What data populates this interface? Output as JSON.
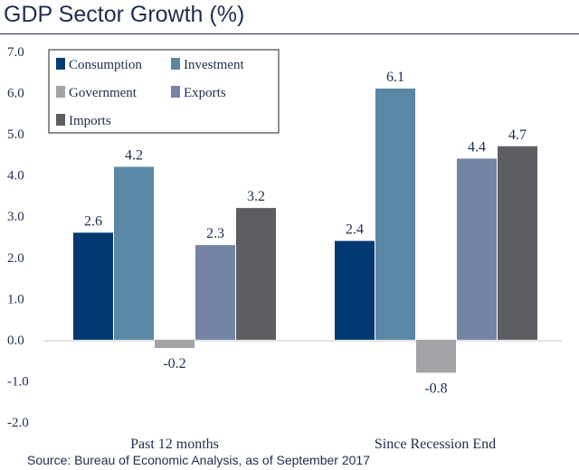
{
  "title": "GDP Sector Growth (%)",
  "source": "Source: Bureau of Economic Analysis, as of September 2017",
  "chart_data": {
    "type": "bar",
    "title": "GDP Sector Growth (%)",
    "xlabel": "",
    "ylabel": "",
    "ylim": [
      -2.0,
      7.0
    ],
    "yticks": [
      "7.0",
      "6.0",
      "5.0",
      "4.0",
      "3.0",
      "2.0",
      "1.0",
      "0.0",
      "-1.0",
      "-2.0"
    ],
    "ytick_values": [
      7,
      6,
      5,
      4,
      3,
      2,
      1,
      0,
      -1,
      -2
    ],
    "categories": [
      "Past 12 months",
      "Since Recession End"
    ],
    "series": [
      {
        "name": "Consumption",
        "color": "#003a70",
        "values": [
          2.6,
          2.4
        ],
        "labels": [
          "2.6",
          "2.4"
        ]
      },
      {
        "name": "Investment",
        "color": "#5a87a5",
        "values": [
          4.2,
          6.1
        ],
        "labels": [
          "4.2",
          "6.1"
        ]
      },
      {
        "name": "Government",
        "color": "#a1a3a6",
        "values": [
          -0.2,
          -0.8
        ],
        "labels": [
          "-0.2",
          "-0.8"
        ]
      },
      {
        "name": "Exports",
        "color": "#7484a4",
        "values": [
          2.3,
          4.4
        ],
        "labels": [
          "2.3",
          "4.4"
        ]
      },
      {
        "name": "Imports",
        "color": "#5d5e62",
        "values": [
          3.2,
          4.7
        ],
        "labels": [
          "3.2",
          "4.7"
        ]
      }
    ],
    "grid": false,
    "legend_position": "top-left"
  }
}
